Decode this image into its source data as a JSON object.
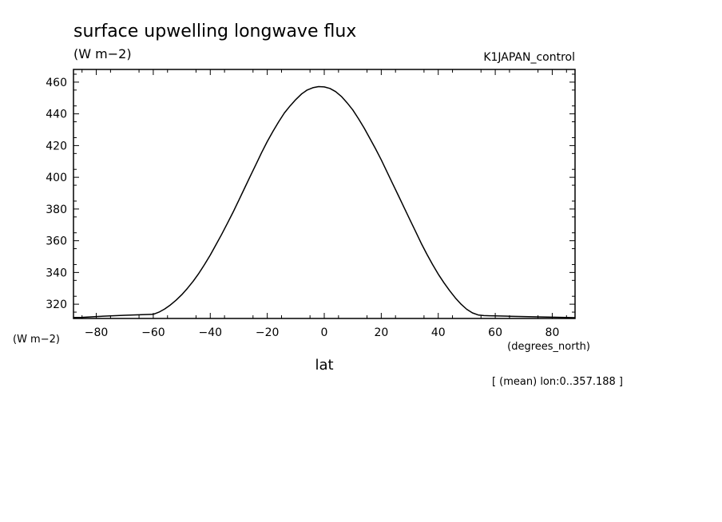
{
  "chart_data": {
    "type": "line",
    "title": "surface upwelling longwave flux",
    "units": "(W m−2)",
    "run_name": "K1JAPAN_control",
    "ylabel": "(W m−2)",
    "xlabel": "lat",
    "xunits": "(degrees_north)",
    "note": "[ (mean) lon:0..357.188 ]",
    "xlim": [
      -88,
      88
    ],
    "ylim": [
      311,
      468
    ],
    "xticks": [
      -80,
      -60,
      -40,
      -20,
      0,
      20,
      40,
      60,
      80
    ],
    "yticks": [
      320,
      340,
      360,
      380,
      400,
      420,
      440,
      460
    ],
    "grid": false,
    "colors": {
      "line": "#000000",
      "axes": "#000000",
      "background": "#ffffff"
    },
    "series": [
      {
        "x": [
          -87.9,
          -85,
          -80,
          -75,
          -70,
          -65,
          -60,
          -58,
          -56,
          -54,
          -52,
          -50,
          -48,
          -46,
          -44,
          -42,
          -40,
          -38,
          -36,
          -34,
          -32,
          -30,
          -28,
          -26,
          -24,
          -22,
          -20,
          -18,
          -16,
          -14,
          -12,
          -10,
          -8,
          -6,
          -4,
          -2,
          0,
          2,
          4,
          6,
          8,
          10,
          12,
          14,
          16,
          18,
          20,
          22,
          24,
          26,
          28,
          30,
          32,
          34,
          36,
          38,
          40,
          42,
          44,
          46,
          48,
          50,
          52,
          54,
          56,
          58,
          60,
          65,
          70,
          75,
          80,
          85,
          87.9
        ],
        "values": [
          311.6,
          311.7,
          312.2,
          312.6,
          313.0,
          313.3,
          313.6,
          315.0,
          317.0,
          319.5,
          322.5,
          326.0,
          330.0,
          334.5,
          339.5,
          345.0,
          351.0,
          357.5,
          364.0,
          371.0,
          378.0,
          385.5,
          393.0,
          400.5,
          408.0,
          415.5,
          422.5,
          429.0,
          435.0,
          440.5,
          445.0,
          449.0,
          452.5,
          455.0,
          456.5,
          457.2,
          457.0,
          456.0,
          454.0,
          451.0,
          447.0,
          442.5,
          437.0,
          431.0,
          424.5,
          418.0,
          411.0,
          403.5,
          396.0,
          388.5,
          381.0,
          373.5,
          366.0,
          358.5,
          351.5,
          345.0,
          339.0,
          333.5,
          328.5,
          324.0,
          320.0,
          316.8,
          314.5,
          313.2,
          312.8,
          312.7,
          312.6,
          312.4,
          312.2,
          312.0,
          311.8,
          311.6,
          311.5
        ]
      }
    ]
  }
}
